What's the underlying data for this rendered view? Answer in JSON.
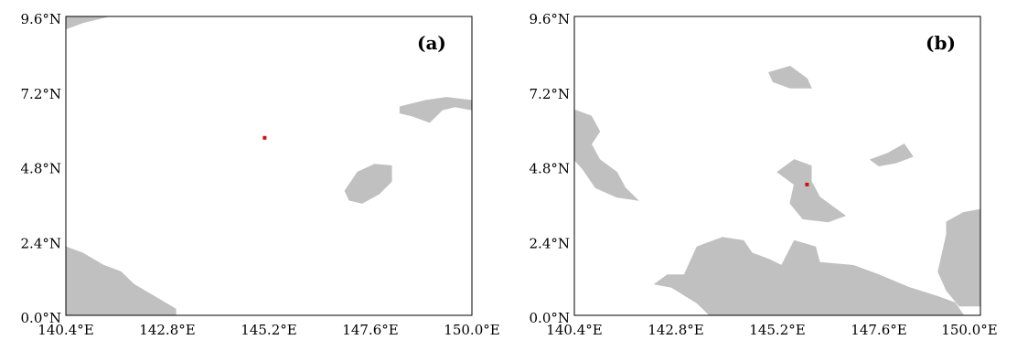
{
  "colors": {
    "background": "#ffffff",
    "frame": "#000000",
    "mask": "#c0c0c0",
    "marker": "#cc1111"
  },
  "chart_data": [
    {
      "type": "map",
      "panel_label": "(a)",
      "x_range": [
        140.4,
        150.0
      ],
      "y_range": [
        0.0,
        9.6
      ],
      "x_ticks": [
        "140.4°E",
        "142.8°E",
        "145.2°E",
        "147.6°E",
        "150.0°E"
      ],
      "y_ticks": [
        "0.0°N",
        "2.4°N",
        "4.8°N",
        "7.2°N",
        "9.6°N"
      ],
      "marker": {
        "lon": 145.1,
        "lat": 5.7
      },
      "regions": [
        {
          "name": "top-left-patch",
          "points": [
            [
              140.4,
              9.2
            ],
            [
              140.8,
              9.4
            ],
            [
              141.4,
              9.6
            ],
            [
              140.4,
              9.6
            ]
          ]
        },
        {
          "name": "right-upper-patch",
          "points": [
            [
              148.3,
              6.7
            ],
            [
              148.9,
              6.9
            ],
            [
              149.4,
              7.0
            ],
            [
              150.0,
              6.9
            ],
            [
              150.0,
              6.6
            ],
            [
              149.6,
              6.7
            ],
            [
              149.3,
              6.6
            ],
            [
              149.0,
              6.2
            ],
            [
              148.6,
              6.4
            ],
            [
              148.3,
              6.5
            ]
          ]
        },
        {
          "name": "central-island",
          "points": [
            [
              147.0,
              4.0
            ],
            [
              147.3,
              4.6
            ],
            [
              147.7,
              4.85
            ],
            [
              148.1,
              4.8
            ],
            [
              148.1,
              4.3
            ],
            [
              147.8,
              3.9
            ],
            [
              147.4,
              3.6
            ],
            [
              147.1,
              3.7
            ]
          ]
        },
        {
          "name": "bottom-left-patch",
          "points": [
            [
              140.4,
              2.2
            ],
            [
              140.8,
              2.0
            ],
            [
              141.3,
              1.6
            ],
            [
              141.7,
              1.4
            ],
            [
              142.0,
              1.0
            ],
            [
              142.5,
              0.6
            ],
            [
              143.0,
              0.2
            ],
            [
              143.0,
              0.0
            ],
            [
              140.4,
              0.0
            ]
          ]
        }
      ]
    },
    {
      "type": "map",
      "panel_label": "(b)",
      "x_range": [
        140.4,
        150.0
      ],
      "y_range": [
        0.0,
        9.6
      ],
      "x_ticks": [
        "140.4°E",
        "142.8°E",
        "145.2°E",
        "147.6°E",
        "150.0°E"
      ],
      "y_ticks": [
        "0.0°N",
        "2.4°N",
        "4.8°N",
        "7.2°N",
        "9.6°N"
      ],
      "marker": {
        "lon": 145.9,
        "lat": 4.2
      },
      "regions": [
        {
          "name": "upper-center-patch",
          "points": [
            [
              145.0,
              7.8
            ],
            [
              145.5,
              8.0
            ],
            [
              145.9,
              7.6
            ],
            [
              146.0,
              7.3
            ],
            [
              145.5,
              7.3
            ],
            [
              145.1,
              7.5
            ]
          ]
        },
        {
          "name": "left-coast-patch",
          "points": [
            [
              140.4,
              6.6
            ],
            [
              140.8,
              6.4
            ],
            [
              141.0,
              5.9
            ],
            [
              140.8,
              5.5
            ],
            [
              141.0,
              5.0
            ],
            [
              141.4,
              4.6
            ],
            [
              141.6,
              4.1
            ],
            [
              141.9,
              3.7
            ],
            [
              141.4,
              3.8
            ],
            [
              140.9,
              4.1
            ],
            [
              140.6,
              4.7
            ],
            [
              140.4,
              5.0
            ]
          ]
        },
        {
          "name": "center-cluster",
          "points": [
            [
              145.2,
              4.6
            ],
            [
              145.6,
              5.0
            ],
            [
              146.0,
              4.8
            ],
            [
              146.0,
              4.3
            ],
            [
              146.2,
              3.8
            ],
            [
              146.8,
              3.2
            ],
            [
              146.4,
              3.0
            ],
            [
              145.8,
              3.1
            ],
            [
              145.5,
              3.6
            ],
            [
              145.6,
              4.2
            ]
          ]
        },
        {
          "name": "right-small-patch",
          "points": [
            [
              147.4,
              5.0
            ],
            [
              147.8,
              5.2
            ],
            [
              148.2,
              5.5
            ],
            [
              148.4,
              5.1
            ],
            [
              148.0,
              4.9
            ],
            [
              147.6,
              4.8
            ]
          ]
        },
        {
          "name": "bottom-band",
          "points": [
            [
              143.0,
              1.3
            ],
            [
              143.3,
              2.2
            ],
            [
              143.9,
              2.5
            ],
            [
              144.4,
              2.4
            ],
            [
              144.6,
              2.0
            ],
            [
              145.0,
              1.8
            ],
            [
              145.3,
              1.6
            ],
            [
              145.6,
              2.4
            ],
            [
              146.1,
              2.2
            ],
            [
              146.2,
              1.7
            ],
            [
              147.0,
              1.6
            ],
            [
              147.6,
              1.3
            ],
            [
              148.3,
              0.9
            ],
            [
              149.0,
              0.6
            ],
            [
              149.4,
              0.4
            ],
            [
              149.6,
              0.0
            ],
            [
              143.6,
              0.0
            ],
            [
              143.3,
              0.4
            ],
            [
              142.7,
              0.9
            ],
            [
              142.3,
              1.0
            ],
            [
              142.6,
              1.3
            ]
          ]
        },
        {
          "name": "right-edge-patch",
          "points": [
            [
              149.2,
              3.0
            ],
            [
              149.6,
              3.3
            ],
            [
              150.0,
              3.4
            ],
            [
              150.0,
              0.3
            ],
            [
              149.5,
              0.3
            ],
            [
              149.2,
              0.8
            ],
            [
              149.0,
              1.4
            ],
            [
              149.1,
              2.0
            ],
            [
              149.2,
              2.6
            ]
          ]
        }
      ]
    }
  ]
}
